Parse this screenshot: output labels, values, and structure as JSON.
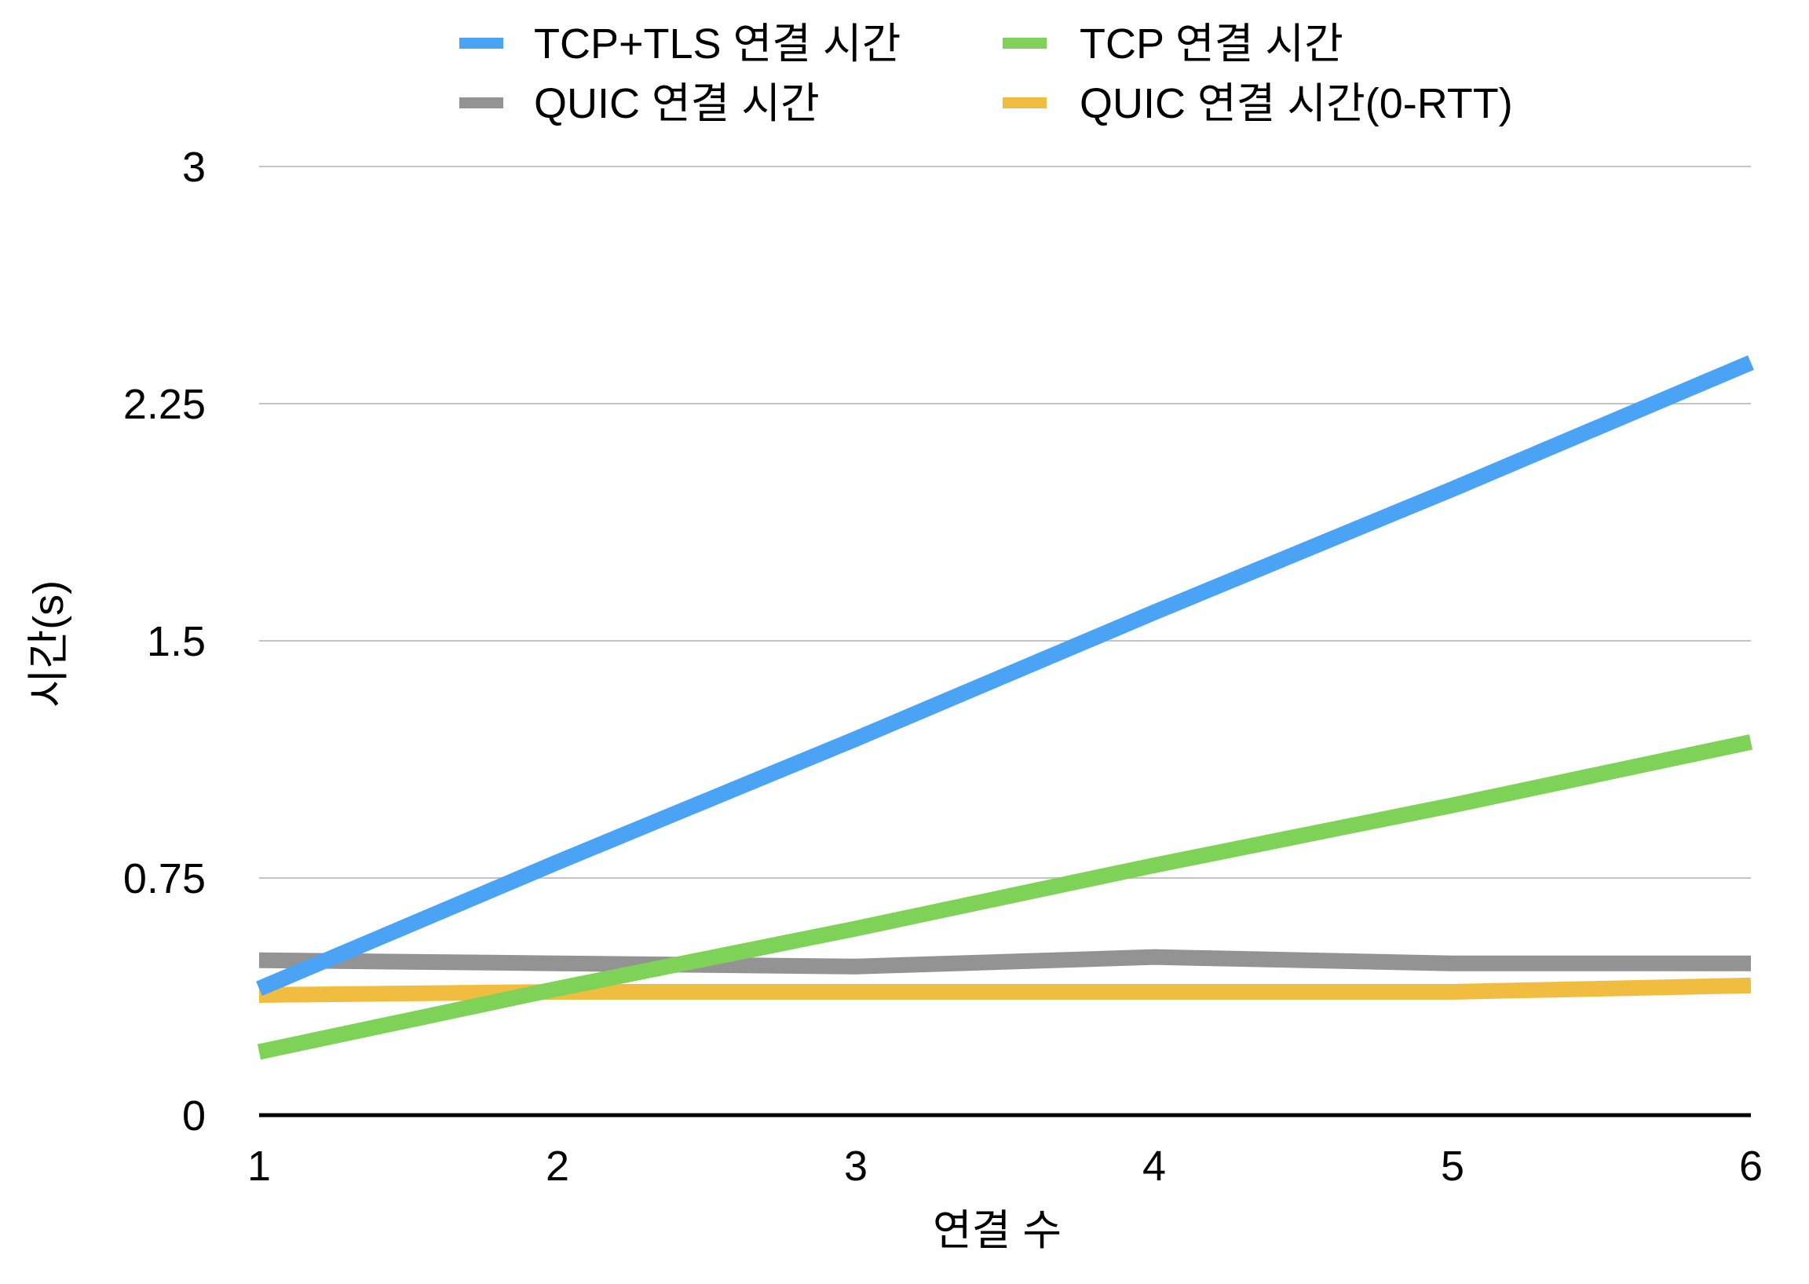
{
  "chart_data": {
    "type": "line",
    "title": "",
    "xlabel": "연결 수",
    "ylabel": "시간(s)",
    "categories": [
      "1",
      "2",
      "3",
      "4",
      "5",
      "6"
    ],
    "x": [
      1,
      2,
      3,
      4,
      5,
      6
    ],
    "ylim": [
      0,
      3
    ],
    "yticks": [
      0,
      0.75,
      1.5,
      2.25,
      3
    ],
    "ytick_labels": [
      "0",
      "0.75",
      "1.5",
      "2.25",
      "3"
    ],
    "grid": true,
    "legend_position": "top",
    "series": [
      {
        "name": "TCP+TLS 연결 시간",
        "color": "#4aa3f5",
        "values": [
          0.4,
          0.8,
          1.19,
          1.59,
          1.98,
          2.38
        ]
      },
      {
        "name": "TCP 연결 시간",
        "color": "#7ed257",
        "values": [
          0.2,
          0.4,
          0.59,
          0.79,
          0.98,
          1.18
        ]
      },
      {
        "name": "QUIC 연결 시간",
        "color": "#939393",
        "values": [
          0.49,
          0.48,
          0.47,
          0.5,
          0.48,
          0.48
        ]
      },
      {
        "name": "QUIC 연결 시간(0-RTT)",
        "color": "#f0bd40",
        "values": [
          0.38,
          0.39,
          0.39,
          0.39,
          0.39,
          0.41
        ]
      }
    ]
  }
}
